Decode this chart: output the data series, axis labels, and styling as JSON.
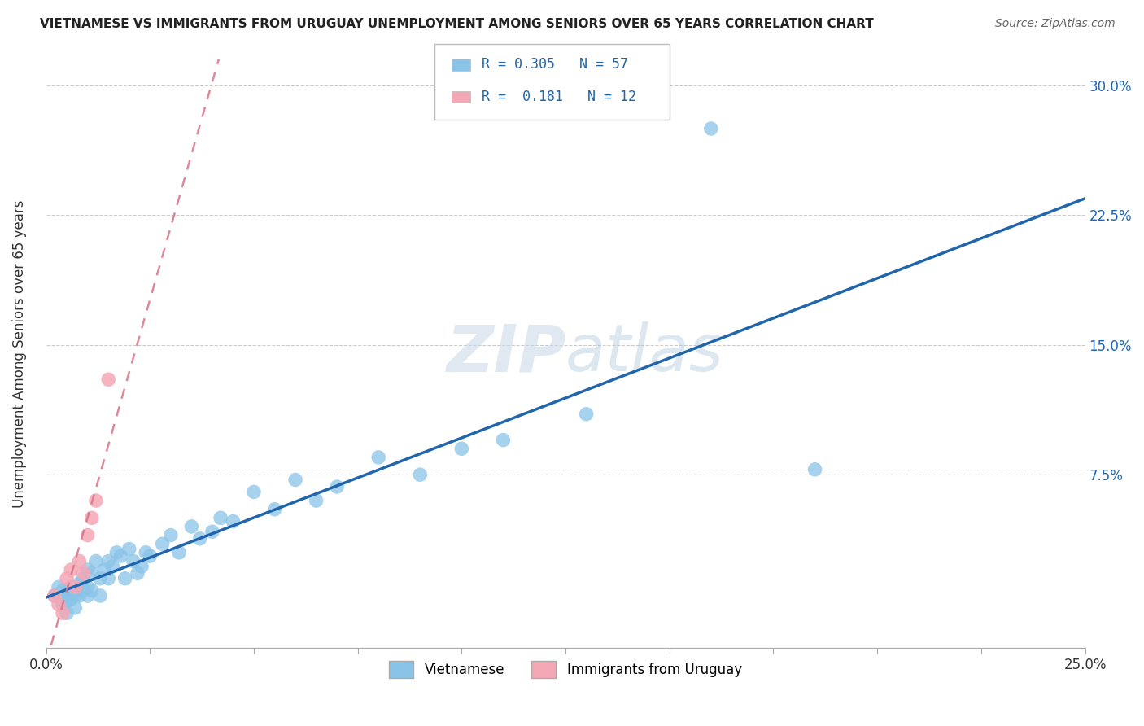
{
  "title": "VIETNAMESE VS IMMIGRANTS FROM URUGUAY UNEMPLOYMENT AMONG SENIORS OVER 65 YEARS CORRELATION CHART",
  "source": "Source: ZipAtlas.com",
  "ylabel": "Unemployment Among Seniors over 65 years",
  "xmin": 0.0,
  "xmax": 0.25,
  "ymin": -0.025,
  "ymax": 0.315,
  "background_color": "#ffffff",
  "watermark_zip": "ZIP",
  "watermark_atlas": "atlas",
  "legend_blue_r": "0.305",
  "legend_blue_n": "57",
  "legend_pink_r": "0.181",
  "legend_pink_n": "12",
  "blue_color": "#89c4e8",
  "pink_color": "#f4a7b5",
  "blue_line_color": "#2166ac",
  "pink_line_color": "#d9738a",
  "vietnamese_x": [
    0.002,
    0.003,
    0.004,
    0.004,
    0.005,
    0.005,
    0.005,
    0.006,
    0.006,
    0.007,
    0.007,
    0.007,
    0.008,
    0.008,
    0.009,
    0.009,
    0.01,
    0.01,
    0.01,
    0.011,
    0.011,
    0.012,
    0.013,
    0.013,
    0.014,
    0.015,
    0.015,
    0.016,
    0.017,
    0.018,
    0.019,
    0.02,
    0.021,
    0.022,
    0.023,
    0.024,
    0.025,
    0.028,
    0.03,
    0.032,
    0.035,
    0.037,
    0.04,
    0.042,
    0.045,
    0.05,
    0.055,
    0.06,
    0.065,
    0.07,
    0.08,
    0.09,
    0.1,
    0.11,
    0.13,
    0.16,
    0.185
  ],
  "vietnamese_y": [
    0.005,
    0.01,
    0.0,
    0.008,
    0.005,
    0.002,
    -0.005,
    0.003,
    0.01,
    0.005,
    0.008,
    -0.002,
    0.012,
    0.005,
    0.015,
    0.008,
    0.02,
    0.01,
    0.005,
    0.018,
    0.008,
    0.025,
    0.015,
    0.005,
    0.02,
    0.015,
    0.025,
    0.022,
    0.03,
    0.028,
    0.015,
    0.032,
    0.025,
    0.018,
    0.022,
    0.03,
    0.028,
    0.035,
    0.04,
    0.03,
    0.045,
    0.038,
    0.042,
    0.05,
    0.048,
    0.065,
    0.055,
    0.072,
    0.06,
    0.068,
    0.085,
    0.075,
    0.09,
    0.095,
    0.11,
    0.275,
    0.078
  ],
  "uruguay_x": [
    0.002,
    0.003,
    0.004,
    0.005,
    0.006,
    0.007,
    0.008,
    0.009,
    0.01,
    0.011,
    0.012,
    0.015
  ],
  "uruguay_y": [
    0.005,
    0.0,
    -0.005,
    0.015,
    0.02,
    0.01,
    0.025,
    0.018,
    0.04,
    0.05,
    0.06,
    0.13
  ]
}
